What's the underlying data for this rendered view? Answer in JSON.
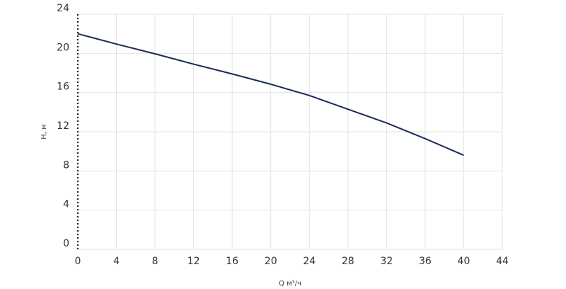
{
  "chart_data": {
    "type": "line",
    "x_label": "Q м³/ч",
    "y_label": "H, м",
    "x": [
      0,
      4,
      8,
      12,
      16,
      20,
      24,
      28,
      32,
      36,
      40
    ],
    "series": [
      {
        "name": "H",
        "color": "#1b2a5c",
        "values": [
          22,
          20.95,
          19.95,
          18.9,
          17.9,
          16.85,
          15.7,
          14.3,
          12.9,
          11.3,
          9.6
        ]
      }
    ],
    "xlim": [
      0,
      44
    ],
    "xticks": [
      0,
      4,
      8,
      12,
      16,
      20,
      24,
      28,
      32,
      36,
      40,
      44
    ],
    "ylim": [
      0,
      24
    ],
    "yticks": [
      0,
      4,
      8,
      12,
      16,
      20,
      24
    ],
    "grid": true
  }
}
